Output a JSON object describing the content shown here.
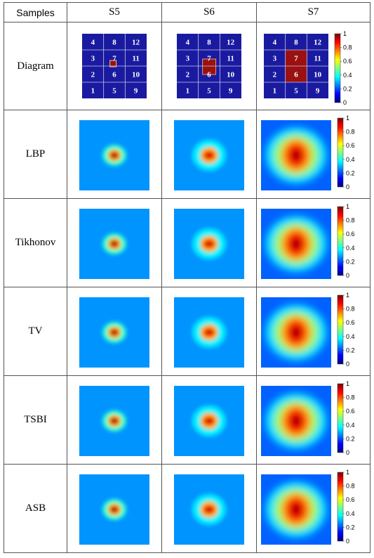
{
  "header": {
    "samples": "Samples",
    "cols": [
      "S5",
      "S6",
      "S7"
    ]
  },
  "rows": [
    {
      "label": "Diagram"
    },
    {
      "label": "LBP"
    },
    {
      "label": "Tikhonov"
    },
    {
      "label": "TV"
    },
    {
      "label": "TSBI"
    },
    {
      "label": "ASB"
    }
  ],
  "diagram": {
    "cell_numbers": [
      "4",
      "8",
      "12",
      "3",
      "7",
      "11",
      "2",
      "6",
      "10",
      "1",
      "5",
      "9"
    ],
    "background_color": "#1a1aa0",
    "inclusion_color": "#9b1010"
  },
  "colorbar": {
    "ticks": [
      "1",
      "0.8",
      "0.6",
      "0.4",
      "0.2",
      "0"
    ],
    "colormap": "jet"
  }
}
